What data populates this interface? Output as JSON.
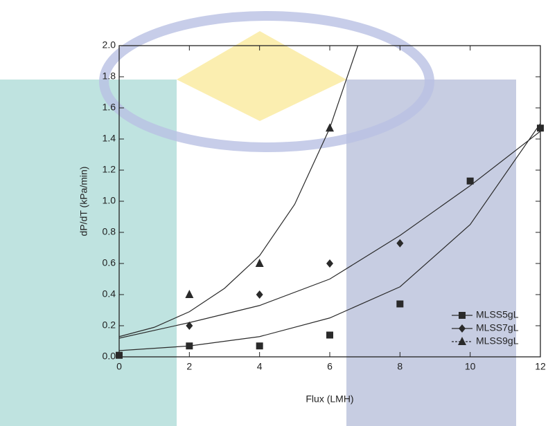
{
  "chart_data": {
    "type": "scatter",
    "xlabel": "Flux (LMH)",
    "ylabel": "dP/dT (kPa/min)",
    "xlim": [
      0,
      12
    ],
    "xticks": [
      0,
      2,
      4,
      6,
      8,
      10,
      12
    ],
    "ylim": [
      0,
      2
    ],
    "yticks": [
      {
        "value": 0,
        "label": "0.0"
      },
      0.2,
      0.4,
      0.6,
      0.8,
      {
        "value": 1,
        "label": "1.0"
      },
      1.2,
      1.4,
      1.6,
      1.8,
      {
        "value": 2,
        "label": "2.0"
      }
    ],
    "legend": "lower right",
    "series": [
      {
        "name": "MLSS5gL",
        "color": "#2a2a2a",
        "marker": "square",
        "x": [
          0,
          2,
          4,
          6,
          8,
          10,
          12
        ],
        "values": [
          0.01,
          0.07,
          0.07,
          0.14,
          0.34,
          1.13,
          1.47
        ],
        "fit_x": [
          0,
          2,
          4,
          6,
          8,
          10,
          12
        ],
        "fit": [
          0.04,
          0.07,
          0.13,
          0.25,
          0.45,
          0.85,
          1.5
        ]
      },
      {
        "name": "MLSS7gL",
        "color": "#2a2a2a",
        "marker": "diamond",
        "x": [
          2,
          4,
          6,
          8
        ],
        "values": [
          0.2,
          0.4,
          0.6,
          0.73
        ],
        "fit_x": [
          0,
          2,
          4,
          6,
          8,
          10,
          12
        ],
        "fit": [
          0.12,
          0.22,
          0.33,
          0.5,
          0.78,
          1.1,
          1.45
        ]
      },
      {
        "name": "MLSS9gL",
        "color": "#2a2a2a",
        "marker": "triangle",
        "x": [
          2,
          4,
          6
        ],
        "values": [
          0.4,
          0.6,
          1.47
        ],
        "fit_x": [
          0,
          1,
          2,
          3,
          4,
          5,
          6,
          6.8
        ],
        "fit": [
          0.13,
          0.19,
          0.29,
          0.44,
          0.65,
          0.98,
          1.47,
          2.0
        ]
      }
    ]
  }
}
